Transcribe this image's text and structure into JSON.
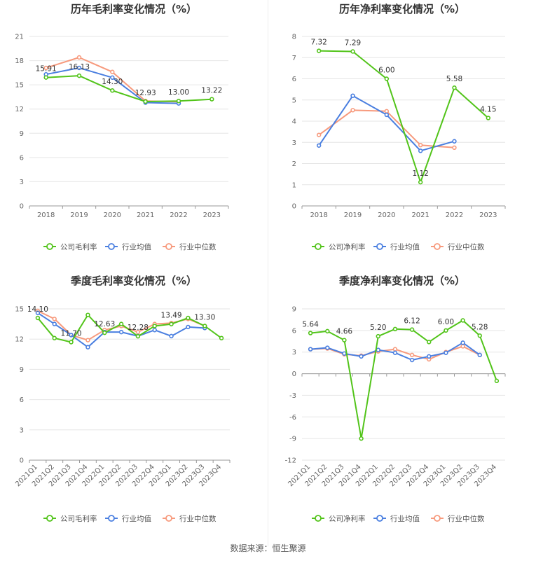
{
  "colors": {
    "company": "#52c41a",
    "avg": "#4a7fe0",
    "median": "#f79a7d",
    "grid": "#e6e6e6",
    "axis": "#999999"
  },
  "source": "数据来源：恒生聚源",
  "chart_data": [
    {
      "type": "line",
      "title": "历年毛利率变化情况（%）",
      "categories": [
        "2018",
        "2019",
        "2020",
        "2021",
        "2022",
        "2023"
      ],
      "yticks": [
        0,
        3,
        6,
        9,
        12,
        15,
        18,
        21
      ],
      "ylim": [
        0,
        21
      ],
      "series": [
        {
          "name": "公司毛利率",
          "values": [
            15.91,
            16.13,
            14.3,
            12.93,
            13.0,
            13.22
          ]
        },
        {
          "name": "行业均值",
          "values": [
            16.3,
            17.1,
            15.9,
            12.8,
            12.7,
            null
          ]
        },
        {
          "name": "行业中位数",
          "values": [
            17.1,
            18.4,
            16.6,
            13.0,
            12.9,
            null
          ]
        }
      ],
      "labels": [
        {
          "index": 0,
          "value": 15.91,
          "text": "15.91"
        },
        {
          "index": 1,
          "value": 16.13,
          "text": "16.13"
        },
        {
          "index": 2,
          "value": 14.3,
          "text": "14.30"
        },
        {
          "index": 3,
          "value": 12.93,
          "text": "12.93"
        },
        {
          "index": 4,
          "value": 13.0,
          "text": "13.00"
        },
        {
          "index": 5,
          "value": 13.22,
          "text": "13.22"
        }
      ],
      "legend": [
        "公司毛利率",
        "行业均值",
        "行业中位数"
      ],
      "legend_position": "bottom",
      "rotate_x": false
    },
    {
      "type": "line",
      "title": "历年净利率变化情况（%）",
      "categories": [
        "2018",
        "2019",
        "2020",
        "2021",
        "2022",
        "2023"
      ],
      "yticks": [
        0,
        1,
        2,
        3,
        4,
        5,
        6,
        7,
        8
      ],
      "ylim": [
        0,
        8
      ],
      "series": [
        {
          "name": "公司净利率",
          "values": [
            7.32,
            7.29,
            6.0,
            1.12,
            5.58,
            4.15
          ]
        },
        {
          "name": "行业均值",
          "values": [
            2.85,
            5.2,
            4.3,
            2.6,
            3.05,
            null
          ]
        },
        {
          "name": "行业中位数",
          "values": [
            3.35,
            4.52,
            4.47,
            2.87,
            2.75,
            null
          ]
        }
      ],
      "labels": [
        {
          "index": 0,
          "value": 7.32,
          "text": "7.32"
        },
        {
          "index": 1,
          "value": 7.29,
          "text": "7.29"
        },
        {
          "index": 2,
          "value": 6.0,
          "text": "6.00"
        },
        {
          "index": 3,
          "value": 1.12,
          "text": "1.12"
        },
        {
          "index": 4,
          "value": 5.58,
          "text": "5.58"
        },
        {
          "index": 5,
          "value": 4.15,
          "text": "4.15"
        }
      ],
      "legend": [
        "公司净利率",
        "行业均值",
        "行业中位数"
      ],
      "legend_position": "bottom",
      "rotate_x": false
    },
    {
      "type": "line",
      "title": "季度毛利率变化情况（%）",
      "categories": [
        "2021Q1",
        "2021Q2",
        "2021Q3",
        "2021Q4",
        "2022Q1",
        "2022Q2",
        "2022Q3",
        "2022Q4",
        "2023Q1",
        "2023Q2",
        "2023Q3",
        "2023Q4"
      ],
      "yticks": [
        0,
        3,
        6,
        9,
        12,
        15
      ],
      "ylim": [
        0,
        15
      ],
      "series": [
        {
          "name": "公司毛利率",
          "values": [
            14.1,
            12.1,
            11.7,
            14.4,
            12.63,
            13.5,
            12.28,
            13.3,
            13.49,
            14.1,
            13.3,
            12.1
          ]
        },
        {
          "name": "行业均值",
          "values": [
            14.6,
            13.5,
            12.4,
            11.2,
            12.7,
            12.7,
            12.3,
            12.9,
            12.3,
            13.2,
            13.1,
            null
          ]
        },
        {
          "name": "行业中位数",
          "values": [
            14.8,
            14.0,
            12.4,
            11.9,
            12.9,
            13.3,
            12.7,
            13.5,
            13.6,
            14.0,
            13.3,
            null
          ]
        }
      ],
      "labels": [
        {
          "index": 0,
          "value": 14.1,
          "text": "14.10"
        },
        {
          "index": 2,
          "value": 11.7,
          "text": "11.70"
        },
        {
          "index": 4,
          "value": 12.63,
          "text": "12.63"
        },
        {
          "index": 6,
          "value": 12.28,
          "text": "12.28"
        },
        {
          "index": 8,
          "value": 13.49,
          "text": "13.49"
        },
        {
          "index": 10,
          "value": 13.3,
          "text": "13.30"
        }
      ],
      "legend": [
        "公司毛利率",
        "行业均值",
        "行业中位数"
      ],
      "legend_position": "bottom",
      "rotate_x": true
    },
    {
      "type": "line",
      "title": "季度净利率变化情况（%）",
      "categories": [
        "2021Q1",
        "2021Q2",
        "2021Q3",
        "2021Q4",
        "2022Q1",
        "2022Q2",
        "2022Q3",
        "2022Q4",
        "2023Q1",
        "2023Q2",
        "2023Q3",
        "2023Q4"
      ],
      "yticks": [
        -12,
        -9,
        -6,
        -3,
        0,
        3,
        6,
        9
      ],
      "ylim": [
        -12,
        9
      ],
      "series": [
        {
          "name": "公司净利率",
          "values": [
            5.64,
            5.9,
            4.66,
            -9.0,
            5.2,
            6.2,
            6.12,
            4.4,
            6.0,
            7.4,
            5.28,
            -1.0
          ]
        },
        {
          "name": "行业均值",
          "values": [
            3.4,
            3.6,
            2.8,
            2.4,
            3.3,
            2.9,
            1.9,
            2.4,
            2.9,
            4.3,
            2.6,
            null
          ]
        },
        {
          "name": "行业中位数",
          "values": [
            3.4,
            3.5,
            2.7,
            2.5,
            3.1,
            3.4,
            2.6,
            2.0,
            3.0,
            3.8,
            2.6,
            null
          ]
        }
      ],
      "labels": [
        {
          "index": 0,
          "value": 5.64,
          "text": "5.64"
        },
        {
          "index": 2,
          "value": 4.66,
          "text": "4.66"
        },
        {
          "index": 4,
          "value": 5.2,
          "text": "5.20"
        },
        {
          "index": 6,
          "value": 6.12,
          "text": "6.12"
        },
        {
          "index": 8,
          "value": 6.0,
          "text": "6.00"
        },
        {
          "index": 10,
          "value": 5.28,
          "text": "5.28"
        }
      ],
      "legend": [
        "公司净利率",
        "行业均值",
        "行业中位数"
      ],
      "legend_position": "bottom",
      "rotate_x": true
    }
  ]
}
